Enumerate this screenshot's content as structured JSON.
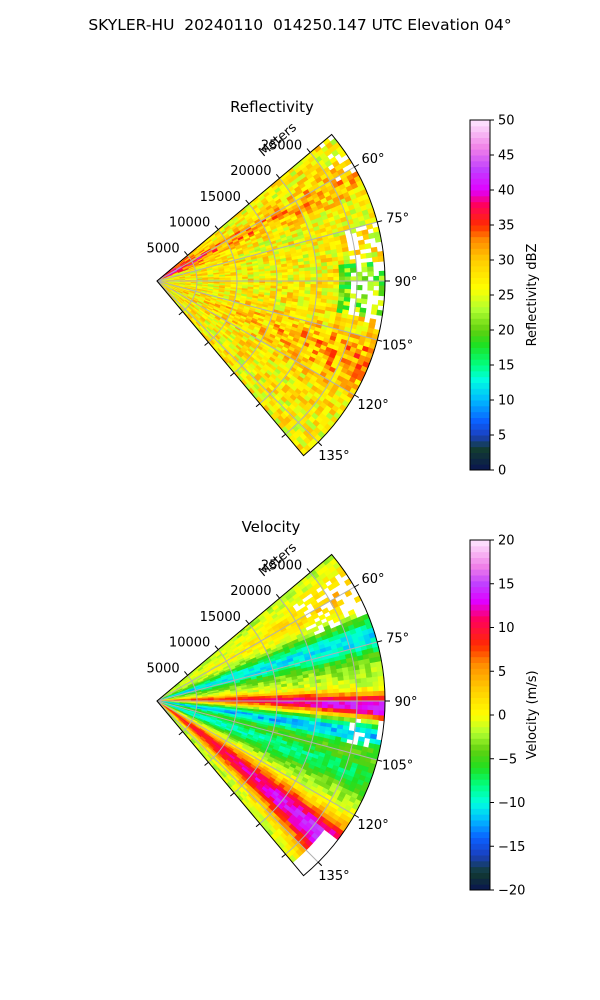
{
  "figure": {
    "title": "SKYLER-HU  20240110  014250.147 UTC Elevation 04°"
  },
  "chart_data": [
    {
      "type": "heatmap",
      "subtype": "radar-ppi-sector",
      "title": "Reflectivity",
      "range_label": "Meters",
      "range_ticks": [
        "5000",
        "10000",
        "15000",
        "20000",
        "25000"
      ],
      "range_values": [
        5000,
        10000,
        15000,
        20000,
        25000
      ],
      "range_max": 28500,
      "azimuth_ticks": [
        "60°",
        "75°",
        "90°",
        "105°",
        "120°",
        "135°"
      ],
      "azimuth_values": [
        60,
        75,
        90,
        105,
        120,
        135
      ],
      "azimuth_range": [
        50,
        140
      ],
      "grid": true,
      "colorbar": {
        "label": "Reflectivity dBZ",
        "min": 0,
        "max": 50,
        "ticks": [
          "0",
          "5",
          "10",
          "15",
          "20",
          "25",
          "30",
          "35",
          "40",
          "45",
          "50"
        ],
        "tick_values": [
          0,
          5,
          10,
          15,
          20,
          25,
          30,
          35,
          40,
          45,
          50
        ],
        "stops": [
          {
            "v": 0,
            "c": "#0a1450"
          },
          {
            "v": 3,
            "c": "#123c30"
          },
          {
            "v": 5,
            "c": "#1a40c0"
          },
          {
            "v": 7,
            "c": "#0a60ff"
          },
          {
            "v": 10,
            "c": "#00b8ff"
          },
          {
            "v": 13,
            "c": "#00ffe0"
          },
          {
            "v": 15,
            "c": "#00ff80"
          },
          {
            "v": 18,
            "c": "#20e020"
          },
          {
            "v": 20,
            "c": "#60d010"
          },
          {
            "v": 23,
            "c": "#b0ff30"
          },
          {
            "v": 26,
            "c": "#ffff00"
          },
          {
            "v": 30,
            "c": "#ffcc00"
          },
          {
            "v": 33,
            "c": "#ff8800"
          },
          {
            "v": 35,
            "c": "#ff2a00"
          },
          {
            "v": 38,
            "c": "#ff0060"
          },
          {
            "v": 40,
            "c": "#e000ff"
          },
          {
            "v": 43,
            "c": "#c040ff"
          },
          {
            "v": 46,
            "c": "#f080e8"
          },
          {
            "v": 50,
            "c": "#ffe8ff"
          }
        ]
      },
      "colors": {
        "grid": "#b0b0b0",
        "frame": "#000000"
      }
    },
    {
      "type": "heatmap",
      "subtype": "radar-ppi-sector",
      "title": "Velocity",
      "range_label": "Meters",
      "range_ticks": [
        "5000",
        "10000",
        "15000",
        "20000",
        "25000"
      ],
      "range_values": [
        5000,
        10000,
        15000,
        20000,
        25000
      ],
      "range_max": 28500,
      "azimuth_ticks": [
        "60°",
        "75°",
        "90°",
        "105°",
        "120°",
        "135°"
      ],
      "azimuth_values": [
        60,
        75,
        90,
        105,
        120,
        135
      ],
      "azimuth_range": [
        50,
        140
      ],
      "grid": true,
      "colorbar": {
        "label": "Velocity (m/s)",
        "min": -20,
        "max": 20,
        "ticks": [
          "−20",
          "−15",
          "−10",
          "−5",
          "0",
          "5",
          "10",
          "15",
          "20"
        ],
        "tick_values": [
          -20,
          -15,
          -10,
          -5,
          0,
          5,
          10,
          15,
          20
        ],
        "stops": [
          {
            "v": -20,
            "c": "#0a1450"
          },
          {
            "v": -18,
            "c": "#123c30"
          },
          {
            "v": -16,
            "c": "#1a40c0"
          },
          {
            "v": -14,
            "c": "#0a60ff"
          },
          {
            "v": -12,
            "c": "#00b8ff"
          },
          {
            "v": -10,
            "c": "#00ffe0"
          },
          {
            "v": -8,
            "c": "#00ff80"
          },
          {
            "v": -6,
            "c": "#20e020"
          },
          {
            "v": -4,
            "c": "#60d010"
          },
          {
            "v": -2,
            "c": "#b0ff30"
          },
          {
            "v": 0,
            "c": "#ffff00"
          },
          {
            "v": 3,
            "c": "#ffcc00"
          },
          {
            "v": 6,
            "c": "#ff8800"
          },
          {
            "v": 8,
            "c": "#ff2a00"
          },
          {
            "v": 11,
            "c": "#ff0060"
          },
          {
            "v": 13,
            "c": "#e000ff"
          },
          {
            "v": 15,
            "c": "#c040ff"
          },
          {
            "v": 17,
            "c": "#f080e8"
          },
          {
            "v": 20,
            "c": "#ffe8ff"
          }
        ]
      },
      "colors": {
        "grid": "#b0b0b0",
        "frame": "#000000"
      }
    }
  ]
}
